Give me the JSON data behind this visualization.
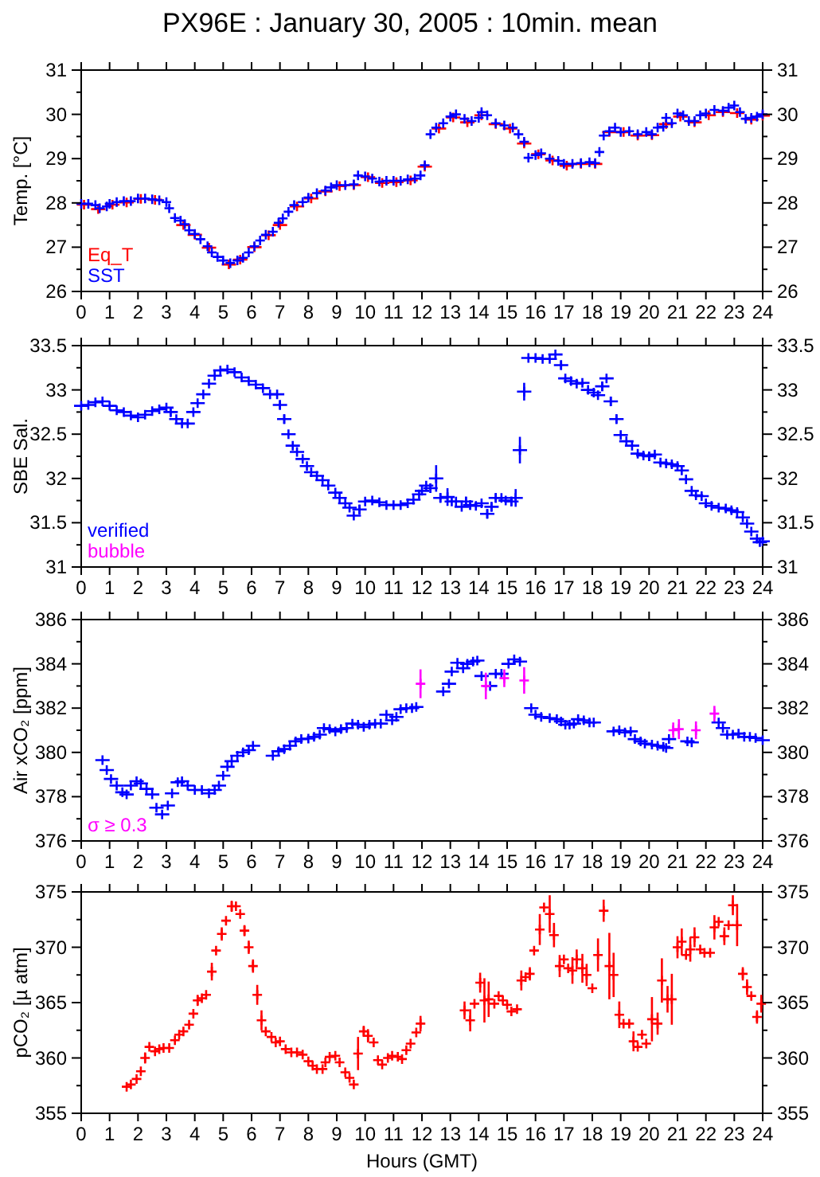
{
  "chart_data": [
    {
      "type": "scatter",
      "title": "PX96E : January 30, 2005 : 10min. mean",
      "ylabel": "Temp. [°C]",
      "marker": "cross",
      "legend": "bottom left",
      "xlim": [
        0,
        24
      ],
      "xticks": [
        0,
        1,
        2,
        3,
        4,
        5,
        6,
        7,
        8,
        9,
        10,
        11,
        12,
        13,
        14,
        15,
        16,
        17,
        18,
        19,
        20,
        21,
        22,
        23,
        24
      ],
      "ylim": [
        26,
        31
      ],
      "yticks": [
        26,
        {
          "value": 26.5,
          "label": null
        },
        27,
        {
          "value": 27.5,
          "label": null
        },
        28,
        {
          "value": 28.5,
          "label": null
        },
        29,
        {
          "value": 29.5,
          "label": null
        },
        30,
        {
          "value": 30.5,
          "label": null
        },
        31
      ],
      "y2lim": [
        26,
        31
      ],
      "y2ticks": [
        26,
        {
          "value": 26.5,
          "label": null
        },
        27,
        {
          "value": 27.5,
          "label": null
        },
        28,
        {
          "value": 28.5,
          "label": null
        },
        29,
        {
          "value": 29.5,
          "label": null
        },
        30,
        {
          "value": 30.5,
          "label": null
        },
        31
      ],
      "series": [
        {
          "name": "Eq_T",
          "color": "#ff0000",
          "x": [
            0.1,
            0.6,
            1.1,
            1.6,
            2.1,
            2.6,
            3.6,
            4.0,
            4.5,
            5.2,
            5.6,
            6.1,
            6.6,
            7.0,
            7.6,
            8.1,
            8.6,
            9.1,
            9.6,
            10.1,
            10.6,
            11.1,
            11.6,
            12.1,
            12.6,
            13.1,
            13.6,
            14.1,
            14.6,
            15.1,
            15.6,
            16.1,
            16.6,
            17.1,
            17.6,
            18.1,
            18.6,
            19.1,
            19.6,
            20.1,
            20.6,
            21.1,
            21.6,
            22.1,
            22.6,
            23.1,
            23.6,
            24.0
          ],
          "values": [
            27.96,
            27.86,
            27.96,
            28.01,
            28.09,
            28.07,
            27.5,
            27.28,
            26.99,
            26.61,
            26.72,
            27.0,
            27.27,
            27.5,
            27.92,
            28.1,
            28.26,
            28.38,
            28.4,
            28.58,
            28.45,
            28.47,
            28.51,
            28.82,
            29.68,
            29.93,
            29.82,
            29.98,
            29.78,
            29.68,
            29.34,
            29.1,
            28.96,
            28.84,
            28.88,
            28.88,
            29.6,
            29.6,
            29.52,
            29.53,
            29.78,
            29.95,
            29.82,
            29.98,
            30.05,
            30.03,
            29.88,
            29.97
          ]
        },
        {
          "name": "SST",
          "color": "#0000ff",
          "x": [
            0,
            0.25,
            0.5,
            0.65,
            0.9,
            1.0,
            1.25,
            1.5,
            1.75,
            2.0,
            2.25,
            2.5,
            2.75,
            3.0,
            3.1,
            3.3,
            3.5,
            3.65,
            3.8,
            4.0,
            4.2,
            4.45,
            4.6,
            4.8,
            5.0,
            5.25,
            5.5,
            5.7,
            5.9,
            6.1,
            6.3,
            6.5,
            6.75,
            6.95,
            7.1,
            7.3,
            7.5,
            7.8,
            8.0,
            8.3,
            8.6,
            8.8,
            9.0,
            9.3,
            9.6,
            9.75,
            10.0,
            10.25,
            10.5,
            10.75,
            11.0,
            11.25,
            11.5,
            11.75,
            11.95,
            12.1,
            12.3,
            12.5,
            12.75,
            13.0,
            13.2,
            13.5,
            13.75,
            14.0,
            14.1,
            14.3,
            14.6,
            14.9,
            15.2,
            15.4,
            15.6,
            15.75,
            16.0,
            16.2,
            16.5,
            16.8,
            17.0,
            17.3,
            17.6,
            17.9,
            18.1,
            18.25,
            18.4,
            18.6,
            18.8,
            19.0,
            19.3,
            19.6,
            19.9,
            20.1,
            20.3,
            20.5,
            20.6,
            20.8,
            21.0,
            21.2,
            21.4,
            21.6,
            21.8,
            22.0,
            22.3,
            22.6,
            22.8,
            23.0,
            23.2,
            23.4,
            23.6,
            23.8,
            24.0
          ],
          "values": [
            27.98,
            27.98,
            27.95,
            27.88,
            27.92,
            27.98,
            28.02,
            28.04,
            28.04,
            28.1,
            28.1,
            28.08,
            28.06,
            28.02,
            27.88,
            27.66,
            27.6,
            27.52,
            27.38,
            27.3,
            27.18,
            27.02,
            26.88,
            26.78,
            26.7,
            26.64,
            26.7,
            26.76,
            26.88,
            27.02,
            27.15,
            27.28,
            27.35,
            27.55,
            27.65,
            27.8,
            27.95,
            28.02,
            28.12,
            28.22,
            28.28,
            28.35,
            28.4,
            28.4,
            28.42,
            28.62,
            28.6,
            28.55,
            28.48,
            28.5,
            28.5,
            28.5,
            28.53,
            28.55,
            28.62,
            28.85,
            29.55,
            29.7,
            29.8,
            29.95,
            30.0,
            29.9,
            29.85,
            29.92,
            30.05,
            29.98,
            29.8,
            29.75,
            29.7,
            29.55,
            29.38,
            29.02,
            29.08,
            29.12,
            29.0,
            28.95,
            28.88,
            28.88,
            28.9,
            28.92,
            28.9,
            29.15,
            29.52,
            29.62,
            29.7,
            29.6,
            29.62,
            29.55,
            29.6,
            29.55,
            29.7,
            29.72,
            29.92,
            29.8,
            30.02,
            29.98,
            29.85,
            29.85,
            29.98,
            30.02,
            30.1,
            30.08,
            30.15,
            30.2,
            30.05,
            29.9,
            29.92,
            29.95,
            30.0
          ]
        }
      ]
    },
    {
      "type": "scatter",
      "ylabel": "SBE Sal.",
      "marker": "cross",
      "legend": "bottom left",
      "xlim": [
        0,
        24
      ],
      "xticks": [
        0,
        1,
        2,
        3,
        4,
        5,
        6,
        7,
        8,
        9,
        10,
        11,
        12,
        13,
        14,
        15,
        16,
        17,
        18,
        19,
        20,
        21,
        22,
        23,
        24
      ],
      "ylim": [
        31,
        33.5
      ],
      "yticks": [
        31,
        {
          "value": 31.25,
          "label": null
        },
        31.5,
        {
          "value": 31.75,
          "label": null
        },
        32,
        {
          "value": 32.25,
          "label": null
        },
        32.5,
        {
          "value": 32.75,
          "label": null
        },
        33,
        {
          "value": 33.25,
          "label": null
        },
        33.5
      ],
      "y2lim": [
        31,
        33.5
      ],
      "y2ticks": [
        31,
        {
          "value": 31.25,
          "label": null
        },
        31.5,
        {
          "value": 31.75,
          "label": null
        },
        32,
        {
          "value": 32.25,
          "label": null
        },
        32.5,
        {
          "value": 32.75,
          "label": null
        },
        33,
        {
          "value": 33.25,
          "label": null
        },
        33.5
      ],
      "series": [
        {
          "name": "verified",
          "color": "#0000ff",
          "x": [
            0,
            0.25,
            0.5,
            0.75,
            1.0,
            1.25,
            1.5,
            1.75,
            2.0,
            2.25,
            2.5,
            2.75,
            3.0,
            3.15,
            3.35,
            3.55,
            3.75,
            3.95,
            4.1,
            4.3,
            4.5,
            4.7,
            4.9,
            5.15,
            5.4,
            5.65,
            5.9,
            6.15,
            6.4,
            6.65,
            6.9,
            7.0,
            7.15,
            7.3,
            7.45,
            7.6,
            7.8,
            7.95,
            8.1,
            8.3,
            8.5,
            8.7,
            8.95,
            9.1,
            9.3,
            9.45,
            9.6,
            9.8,
            10.0,
            10.25,
            10.5,
            10.75,
            11.0,
            11.25,
            11.5,
            11.7,
            11.9,
            12.0,
            12.15,
            12.3,
            12.5,
            12.65,
            12.9,
            13.05,
            13.2,
            13.4,
            13.55,
            13.7,
            13.9,
            14.1,
            14.3,
            14.45,
            14.6,
            14.8,
            14.95,
            15.15,
            15.3,
            15.45,
            15.6,
            15.75,
            16.0,
            16.25,
            16.5,
            16.7,
            16.9,
            17.05,
            17.25,
            17.45,
            17.65,
            17.85,
            18.05,
            18.2,
            18.35,
            18.5,
            18.65,
            18.85,
            19.0,
            19.2,
            19.4,
            19.6,
            19.8,
            20.0,
            20.2,
            20.4,
            20.6,
            20.8,
            21.0,
            21.15,
            21.3,
            21.5,
            21.65,
            21.85,
            22.0,
            22.2,
            22.45,
            22.7,
            22.9,
            23.1,
            23.3,
            23.45,
            23.6,
            23.8,
            23.9,
            24.0
          ],
          "values": [
            32.82,
            32.83,
            32.86,
            32.87,
            32.82,
            32.77,
            32.75,
            32.71,
            32.69,
            32.72,
            32.76,
            32.78,
            32.8,
            32.75,
            32.67,
            32.62,
            32.62,
            32.75,
            32.85,
            32.95,
            33.07,
            33.16,
            33.22,
            33.23,
            33.2,
            33.14,
            33.1,
            33.06,
            33.02,
            32.95,
            32.95,
            32.83,
            32.67,
            32.5,
            32.37,
            32.3,
            32.22,
            32.14,
            32.07,
            32.03,
            31.98,
            31.92,
            31.84,
            31.78,
            31.72,
            31.67,
            31.58,
            31.65,
            31.74,
            31.75,
            31.73,
            31.7,
            31.7,
            31.7,
            31.72,
            31.76,
            31.82,
            31.86,
            31.92,
            31.89,
            32.0,
            31.78,
            31.79,
            31.74,
            31.74,
            31.68,
            31.74,
            31.7,
            31.69,
            31.72,
            31.6,
            31.68,
            31.78,
            31.78,
            31.75,
            31.74,
            31.78,
            32.32,
            32.98,
            33.36,
            33.36,
            33.35,
            33.35,
            33.4,
            33.28,
            33.13,
            33.1,
            33.07,
            33.08,
            33.0,
            32.97,
            32.94,
            33.04,
            33.13,
            32.87,
            32.67,
            32.49,
            32.42,
            32.37,
            32.28,
            32.26,
            32.25,
            32.27,
            32.18,
            32.17,
            32.16,
            32.14,
            32.09,
            31.99,
            31.86,
            31.81,
            31.8,
            31.72,
            31.69,
            31.67,
            31.66,
            31.64,
            31.62,
            31.56,
            31.49,
            31.4,
            31.32,
            31.28,
            31.29
          ],
          "errors": [
            null,
            null,
            null,
            null,
            null,
            null,
            null,
            null,
            null,
            null,
            null,
            null,
            null,
            0.03,
            null,
            null,
            null,
            null,
            null,
            null,
            null,
            null,
            null,
            null,
            null,
            null,
            null,
            null,
            null,
            null,
            null,
            0.05,
            0.05,
            null,
            null,
            null,
            null,
            null,
            null,
            null,
            null,
            null,
            null,
            null,
            null,
            null,
            null,
            0.05,
            null,
            null,
            null,
            null,
            null,
            null,
            null,
            null,
            null,
            null,
            null,
            0.05,
            0.15,
            0.05,
            0.1,
            null,
            null,
            null,
            0.05,
            0.05,
            null,
            null,
            0.05,
            0.05,
            0.05,
            null,
            null,
            0.05,
            0.1,
            0.15,
            0.1,
            null,
            null,
            null,
            null,
            null,
            0.05,
            null,
            null,
            null,
            null,
            null,
            null,
            null,
            0.05,
            null,
            0.05,
            0.05,
            null,
            null,
            null,
            null,
            null,
            0.05,
            null,
            null,
            null,
            null,
            null,
            null,
            null,
            null,
            null,
            null,
            null,
            null,
            null,
            null,
            null,
            null,
            null,
            null,
            null,
            null,
            null,
            null
          ]
        },
        {
          "name": "bubble",
          "color": "#ff00ff"
        }
      ]
    },
    {
      "type": "scatter",
      "ylabel": "Air xCO₂ [ppm]",
      "marker": "cross",
      "legend": "bottom left",
      "xlim": [
        0,
        24
      ],
      "xticks": [
        0,
        1,
        2,
        3,
        4,
        5,
        6,
        7,
        8,
        9,
        10,
        11,
        12,
        13,
        14,
        15,
        16,
        17,
        18,
        19,
        20,
        21,
        22,
        23,
        24
      ],
      "ylim": [
        376,
        386
      ],
      "yticks": [
        376,
        {
          "value": 377,
          "label": null
        },
        378,
        {
          "value": 379,
          "label": null
        },
        380,
        {
          "value": 381,
          "label": null
        },
        382,
        {
          "value": 383,
          "label": null
        },
        384,
        {
          "value": 385,
          "label": null
        },
        386
      ],
      "y2lim": [
        376,
        386
      ],
      "y2ticks": [
        376,
        {
          "value": 377,
          "label": null
        },
        378,
        {
          "value": 379,
          "label": null
        },
        380,
        {
          "value": 381,
          "label": null
        },
        382,
        {
          "value": 383,
          "label": null
        },
        384,
        {
          "value": 385,
          "label": null
        },
        386
      ],
      "series": [
        {
          "color": "#0000ff",
          "x": [
            0.75,
            0.9,
            1.05,
            1.25,
            1.45,
            1.6,
            1.75,
            1.95,
            2.1,
            2.3,
            2.5,
            2.65,
            2.85,
            3.05,
            3.2,
            3.4,
            3.55,
            3.75,
            4.0,
            4.25,
            4.5,
            4.7,
            4.85,
            5.0,
            5.15,
            5.3,
            5.5,
            5.7,
            5.9,
            6.05,
            6.75,
            6.95,
            7.15,
            7.35,
            7.55,
            7.75,
            8.0,
            8.2,
            8.4,
            8.55,
            8.75,
            8.95,
            9.15,
            9.35,
            9.55,
            9.75,
            9.95,
            10.15,
            10.35,
            10.55,
            10.75,
            10.95,
            11.1,
            11.25,
            11.45,
            11.65,
            11.8,
            12.75,
            12.95,
            13.05,
            13.25,
            13.45,
            13.6,
            13.8,
            13.95,
            14.1,
            14.4,
            14.6,
            14.8,
            15.05,
            15.25,
            15.45,
            15.85,
            16.0,
            16.2,
            16.5,
            16.75,
            16.9,
            17.05,
            17.2,
            17.35,
            17.5,
            17.7,
            17.9,
            18.05,
            18.75,
            18.95,
            19.15,
            19.35,
            19.5,
            19.7,
            19.85,
            20.1,
            20.3,
            20.5,
            20.6,
            20.7,
            21.35,
            21.5,
            22.45,
            22.6,
            22.75,
            22.95,
            23.15,
            23.35,
            23.55,
            23.75,
            24.0
          ],
          "values": [
            379.65,
            379.2,
            378.8,
            378.5,
            378.2,
            378.1,
            378.5,
            378.7,
            378.6,
            378.35,
            378.1,
            377.5,
            377.2,
            377.6,
            378.15,
            378.65,
            378.7,
            378.5,
            378.3,
            378.3,
            378.15,
            378.3,
            378.5,
            378.95,
            379.35,
            379.6,
            379.85,
            380.0,
            380.1,
            380.3,
            379.85,
            380.05,
            380.15,
            380.3,
            380.5,
            380.6,
            380.62,
            380.7,
            380.8,
            381.1,
            381.05,
            380.95,
            381.05,
            381.1,
            381.3,
            381.25,
            381.15,
            381.25,
            381.3,
            381.3,
            381.7,
            381.45,
            381.6,
            381.95,
            382.0,
            382.0,
            382.05,
            382.75,
            383.1,
            383.65,
            384.05,
            383.8,
            384.0,
            384.1,
            384.15,
            383.45,
            383.0,
            383.55,
            383.55,
            384.0,
            384.2,
            384.1,
            382.0,
            381.7,
            381.6,
            381.55,
            381.5,
            381.4,
            381.25,
            381.25,
            381.3,
            381.5,
            381.45,
            381.35,
            381.35,
            380.95,
            381.0,
            380.9,
            380.95,
            380.6,
            380.5,
            380.4,
            380.35,
            380.3,
            380.25,
            380.2,
            380.6,
            380.5,
            380.45,
            381.35,
            381.1,
            380.8,
            380.8,
            380.85,
            380.7,
            380.7,
            380.65,
            380.55
          ]
        },
        {
          "name": "σ ≥ 0.3",
          "color": "#ff00ff",
          "x": [
            11.95,
            14.25,
            14.9,
            15.6,
            20.85,
            21.05,
            21.65,
            22.3
          ],
          "values": [
            383.1,
            383.0,
            383.35,
            383.25,
            381.0,
            381.05,
            381.0,
            381.75
          ],
          "errors": [
            0.65,
            0.6,
            0.4,
            0.6,
            0.35,
            0.45,
            0.4,
            0.35
          ]
        }
      ]
    },
    {
      "type": "scatter",
      "ylabel": "pCO₂ [µ atm]",
      "xlabel": "Hours (GMT)",
      "marker": "cross",
      "xlim": [
        0,
        24
      ],
      "xticks": [
        0,
        1,
        2,
        3,
        4,
        5,
        6,
        7,
        8,
        9,
        10,
        11,
        12,
        13,
        14,
        15,
        16,
        17,
        18,
        19,
        20,
        21,
        22,
        23,
        24
      ],
      "ylim": [
        355,
        375
      ],
      "yticks": [
        355,
        {
          "value": 357.5,
          "label": null
        },
        360,
        {
          "value": 362.5,
          "label": null
        },
        365,
        {
          "value": 367.5,
          "label": null
        },
        370,
        {
          "value": 372.5,
          "label": null
        },
        375
      ],
      "y2lim": [
        355,
        375
      ],
      "y2ticks": [
        355,
        {
          "value": 357.5,
          "label": null
        },
        360,
        {
          "value": 362.5,
          "label": null
        },
        365,
        {
          "value": 367.5,
          "label": null
        },
        370,
        {
          "value": 372.5,
          "label": null
        },
        375
      ],
      "series": [
        {
          "color": "#ff0000",
          "x": [
            1.6,
            1.75,
            1.95,
            2.1,
            2.25,
            2.4,
            2.6,
            2.75,
            2.9,
            3.1,
            3.3,
            3.45,
            3.6,
            3.8,
            3.95,
            4.1,
            4.25,
            4.4,
            4.6,
            4.75,
            4.95,
            5.1,
            5.3,
            5.45,
            5.6,
            5.75,
            5.9,
            6.05,
            6.2,
            6.35,
            6.5,
            6.7,
            6.85,
            7.0,
            7.2,
            7.4,
            7.6,
            7.8,
            8.0,
            8.15,
            8.3,
            8.5,
            8.6,
            8.75,
            8.95,
            9.1,
            9.3,
            9.45,
            9.6,
            9.75,
            9.95,
            10.1,
            10.3,
            10.45,
            10.6,
            10.8,
            10.95,
            11.15,
            11.3,
            11.45,
            11.6,
            11.8,
            11.95,
            13.5,
            13.7,
            13.85,
            14.05,
            14.2,
            14.35,
            14.55,
            14.7,
            14.85,
            15.0,
            15.15,
            15.35,
            15.5,
            15.65,
            15.8,
            15.95,
            16.15,
            16.3,
            16.5,
            16.65,
            16.85,
            17.0,
            17.15,
            17.3,
            17.45,
            17.65,
            17.8,
            18.0,
            18.2,
            18.4,
            18.6,
            18.75,
            18.95,
            19.1,
            19.3,
            19.45,
            19.6,
            19.75,
            19.9,
            20.1,
            20.3,
            20.45,
            20.65,
            20.8,
            21.0,
            21.15,
            21.3,
            21.45,
            21.6,
            21.8,
            21.95,
            22.15,
            22.3,
            22.45,
            22.65,
            22.8,
            22.95,
            23.1,
            23.3,
            23.45,
            23.6,
            23.8,
            23.95
          ],
          "values": [
            357.4,
            357.6,
            358.1,
            358.8,
            360.0,
            361.0,
            360.6,
            360.8,
            360.9,
            360.9,
            361.6,
            362.1,
            362.4,
            363.0,
            364.0,
            365.2,
            365.4,
            365.7,
            367.8,
            369.7,
            371.2,
            372.4,
            373.7,
            373.7,
            373.0,
            371.5,
            370.0,
            368.3,
            365.7,
            363.4,
            362.4,
            361.9,
            361.4,
            361.5,
            360.8,
            360.5,
            360.5,
            360.3,
            359.7,
            359.3,
            359.0,
            359.0,
            359.6,
            360.1,
            360.2,
            359.6,
            358.7,
            358.2,
            357.6,
            360.4,
            362.4,
            362.0,
            361.4,
            359.8,
            359.4,
            360.0,
            360.2,
            360.1,
            359.9,
            360.7,
            361.3,
            362.3,
            363.1,
            364.3,
            363.4,
            364.9,
            366.8,
            365.2,
            365.3,
            364.9,
            365.6,
            365.2,
            364.8,
            364.2,
            364.4,
            367.0,
            367.3,
            367.6,
            369.7,
            371.6,
            373.6,
            373.0,
            371.1,
            368.3,
            368.9,
            368.1,
            367.9,
            368.9,
            368.1,
            367.5,
            366.3,
            369.3,
            373.3,
            368.3,
            367.5,
            363.9,
            363.1,
            363.1,
            361.5,
            361.0,
            362.1,
            361.3,
            363.5,
            363.1,
            367.0,
            365.3,
            365.3,
            370.0,
            370.5,
            369.3,
            369.8,
            370.9,
            369.8,
            369.5,
            369.5,
            371.8,
            372.3,
            371.0,
            372.0,
            373.8,
            372.0,
            367.6,
            366.4,
            365.6,
            363.7,
            364.9
          ],
          "errors": [
            null,
            null,
            null,
            null,
            0.5,
            null,
            null,
            null,
            null,
            null,
            null,
            null,
            null,
            null,
            null,
            0.5,
            null,
            null,
            0.8,
            null,
            0.6,
            null,
            0.5,
            null,
            null,
            0.5,
            0.6,
            0.6,
            0.9,
            0.9,
            null,
            null,
            null,
            null,
            null,
            null,
            null,
            null,
            null,
            null,
            null,
            null,
            null,
            null,
            null,
            null,
            null,
            null,
            null,
            1.5,
            0.5,
            0.6,
            null,
            null,
            null,
            null,
            null,
            null,
            null,
            null,
            null,
            null,
            0.7,
            0.8,
            1.0,
            null,
            0.9,
            2.0,
            1.6,
            null,
            null,
            null,
            null,
            null,
            null,
            0.9,
            null,
            0.6,
            null,
            1.4,
            null,
            1.7,
            1.1,
            1.0,
            null,
            null,
            1.2,
            0.9,
            1.3,
            1.0,
            null,
            1.5,
            1.0,
            3.0,
            2.0,
            1.2,
            null,
            null,
            0.9,
            null,
            null,
            null,
            2.0,
            1.0,
            2.0,
            1.2,
            2.3,
            1.0,
            1.2,
            null,
            1.1,
            0.9,
            null,
            null,
            null,
            1.1,
            null,
            0.8,
            null,
            0.9,
            1.9,
            0.6,
            0.7,
            null,
            0.6,
            0.8
          ]
        }
      ]
    }
  ]
}
